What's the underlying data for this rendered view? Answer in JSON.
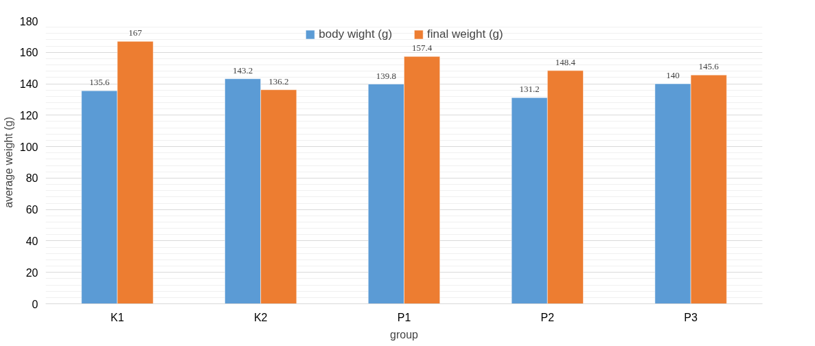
{
  "chart_data": {
    "type": "bar",
    "xlabel": "group",
    "ylabel": "average weight (g)",
    "categories": [
      "K1",
      "K2",
      "P1",
      "P2",
      "P3"
    ],
    "series": [
      {
        "name": "body wight (g)",
        "color": "#5b9bd5",
        "values": [
          135.6,
          143.2,
          139.8,
          131.2,
          140
        ]
      },
      {
        "name": "final weight (g)",
        "color": "#ed7d31",
        "values": [
          167,
          136.2,
          157.4,
          148.4,
          145.6
        ]
      }
    ],
    "ylim": [
      0,
      180
    ],
    "yticks": [
      0,
      20,
      40,
      60,
      80,
      100,
      120,
      140,
      160,
      180
    ],
    "grid": "y",
    "legend": "top",
    "data_labels": true
  }
}
